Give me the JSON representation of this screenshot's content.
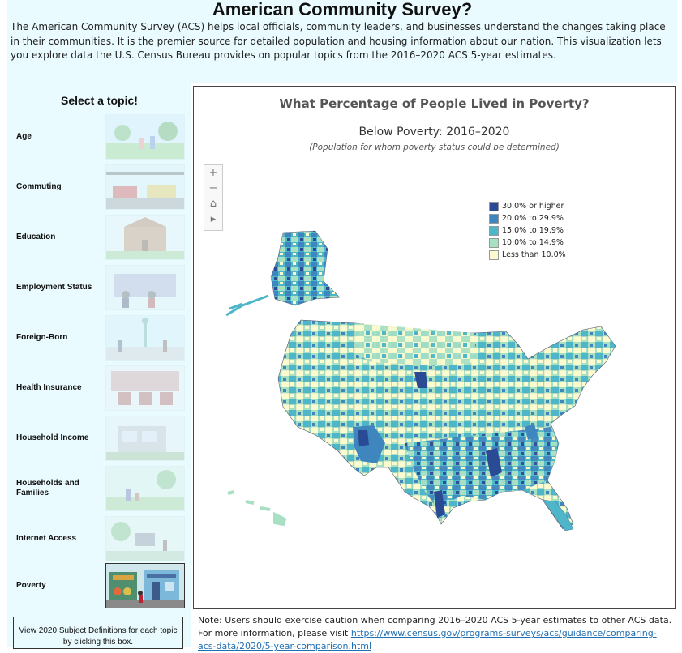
{
  "header": {
    "title": "American Community Survey?",
    "intro": "The American Community Survey (ACS) helps local officials, community leaders, and businesses understand the changes taking place in their communities. It is the premier source for detailed population and housing information about our nation. This visualization lets you explore data the U.S. Census Bureau provides on popular topics from the 2016–2020 ACS 5-year estimates."
  },
  "sidebar": {
    "heading": "Select a topic!",
    "topics": [
      {
        "label": "Age"
      },
      {
        "label": "Commuting"
      },
      {
        "label": "Education"
      },
      {
        "label": "Employment Status"
      },
      {
        "label": "Foreign-Born"
      },
      {
        "label": "Health Insurance"
      },
      {
        "label": "Household Income"
      },
      {
        "label": "Households and Families"
      },
      {
        "label": "Internet Access"
      },
      {
        "label": "Poverty"
      }
    ],
    "selected_topic": "Poverty",
    "definitions_button": "View 2020 Subject Definitions for each topic by clicking this box."
  },
  "map": {
    "title": "What Percentage of People Lived in Poverty?",
    "subtitle": "Below Poverty: 2016–2020",
    "note": "(Population for whom poverty status could be determined)",
    "controls": {
      "zoom_in": "+",
      "zoom_out": "−",
      "home": "⌂",
      "play": "▸"
    },
    "legend": [
      {
        "label": "30.0% or higher",
        "color": "#2b4a94"
      },
      {
        "label": "20.0% to 29.9%",
        "color": "#3f86be"
      },
      {
        "label": "15.0% to 19.9%",
        "color": "#4db6c9"
      },
      {
        "label": "10.0% to 14.9%",
        "color": "#a8e0c4"
      },
      {
        "label": "Less than 10.0%",
        "color": "#fbfbcf"
      }
    ]
  },
  "footnote": {
    "text": "Note: Users should exercise caution when comparing 2016–2020 ACS 5-year estimates to other ACS data. For more information, please visit ",
    "link": "https://www.census.gov/programs-surveys/acs/guidance/comparing-acs-data/2020/5-year-comparison.html"
  }
}
